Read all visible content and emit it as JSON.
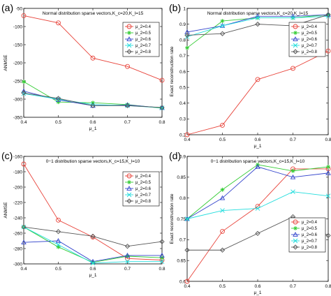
{
  "chart_data": [
    {
      "panel": "(a)",
      "type": "line",
      "title": "Normal distribution sparse vectors,K_c=20,K_l=15",
      "xlabel": "μ_1",
      "ylabel": "ANMSE",
      "xlim": [
        0.4,
        0.8
      ],
      "ylim": [
        -350,
        -50
      ],
      "xticks": [
        0.4,
        0.5,
        0.6,
        0.7,
        0.8
      ],
      "xtick_labels": [
        "0.4",
        "0.5",
        "0.6",
        "0.7",
        "0.8"
      ],
      "yticks": [
        -350,
        -300,
        -250,
        -200,
        -150,
        -100,
        -50
      ],
      "ytick_labels": [
        "-350",
        "-300",
        "-250",
        "-200",
        "-150",
        "-100",
        "-50"
      ],
      "legend": "top-right",
      "x": [
        0.4,
        0.5,
        0.6,
        0.7,
        0.8
      ],
      "series": [
        {
          "name": "μ_2=0.4",
          "color": "#e8433a",
          "marker": "circle",
          "values": [
            -70,
            -90,
            -187,
            -210,
            -248
          ]
        },
        {
          "name": "μ_2=0.5",
          "color": "#33cc33",
          "marker": "star",
          "values": [
            -252,
            -308,
            -310,
            -315,
            -325
          ]
        },
        {
          "name": "μ_2=0.6",
          "color": "#3344cc",
          "marker": "triangle",
          "values": [
            -278,
            -302,
            -318,
            -316,
            -324
          ]
        },
        {
          "name": "μ_2=0.7",
          "color": "#22dddd",
          "marker": "cross",
          "values": [
            -285,
            -300,
            -315,
            -318,
            -324
          ]
        },
        {
          "name": "μ_2=0.8",
          "color": "#555555",
          "marker": "diamond",
          "values": [
            -283,
            -298,
            -318,
            -318,
            -323
          ]
        }
      ]
    },
    {
      "panel": "(b)",
      "type": "line",
      "title": "Normal distribution sparse vectors,K_c=20,K_l=15",
      "xlabel": "μ_1",
      "ylabel": "Exact reconstruction rate",
      "xlim": [
        0.4,
        0.8
      ],
      "ylim": [
        0.2,
        1.0
      ],
      "xticks": [
        0.4,
        0.5,
        0.6,
        0.7,
        0.8
      ],
      "xtick_labels": [
        "0.4",
        "0.5",
        "0.6",
        "0.7",
        "0.8"
      ],
      "yticks": [
        0.2,
        0.3,
        0.4,
        0.5,
        0.6,
        0.7,
        0.8,
        0.9,
        1.0
      ],
      "ytick_labels": [
        "0.2",
        "0.3",
        "0.4",
        "0.5",
        "0.6",
        "0.7",
        "0.8",
        "0.9",
        "1"
      ],
      "legend": "right",
      "x": [
        0.4,
        0.5,
        0.6,
        0.7,
        0.8
      ],
      "series": [
        {
          "name": "μ_2=0.4",
          "color": "#e8433a",
          "marker": "circle",
          "values": [
            0.2,
            0.26,
            0.55,
            0.62,
            0.73
          ]
        },
        {
          "name": "μ_2=0.5",
          "color": "#33cc33",
          "marker": "star",
          "values": [
            0.75,
            0.92,
            0.94,
            0.94,
            0.96
          ]
        },
        {
          "name": "μ_2=0.6",
          "color": "#3344cc",
          "marker": "triangle",
          "values": [
            0.85,
            0.89,
            0.95,
            0.95,
            0.96
          ]
        },
        {
          "name": "μ_2=0.7",
          "color": "#22dddd",
          "marker": "cross",
          "values": [
            0.82,
            0.89,
            0.94,
            0.94,
            0.95
          ]
        },
        {
          "name": "μ_2=0.8",
          "color": "#555555",
          "marker": "diamond",
          "values": [
            0.83,
            0.84,
            0.9,
            0.89,
            0.96
          ]
        }
      ]
    },
    {
      "panel": "(c)",
      "type": "line",
      "title": "0−1 distribution sparse vectors,K_c=15,K_l=10",
      "xlabel": "μ_1",
      "ylabel": "ANMSE",
      "xlim": [
        0.4,
        0.8
      ],
      "ylim": [
        -300,
        -160
      ],
      "xticks": [
        0.4,
        0.5,
        0.6,
        0.7,
        0.8
      ],
      "xtick_labels": [
        "0.4",
        "0.5",
        "0.6",
        "0.7",
        "0.8"
      ],
      "yticks": [
        -300,
        -280,
        -260,
        -240,
        -220,
        -200,
        -180,
        -160
      ],
      "ytick_labels": [
        "-300",
        "-280",
        "-260",
        "-240",
        "-220",
        "-200",
        "-180",
        "-160"
      ],
      "legend": "right",
      "x": [
        0.4,
        0.5,
        0.6,
        0.7,
        0.8
      ],
      "series": [
        {
          "name": "μ_2=0.4",
          "color": "#e8433a",
          "marker": "circle",
          "values": [
            -170,
            -243,
            -265,
            -293,
            -295
          ]
        },
        {
          "name": "μ_2=0.5",
          "color": "#33cc33",
          "marker": "star",
          "values": [
            -252,
            -278,
            -298,
            -290,
            -292
          ]
        },
        {
          "name": "μ_2=0.6",
          "color": "#3344cc",
          "marker": "triangle",
          "values": [
            -272,
            -270,
            -297,
            -289,
            -289
          ]
        },
        {
          "name": "μ_2=0.7",
          "color": "#22dddd",
          "marker": "cross",
          "values": [
            -252,
            -275,
            -299,
            -297,
            -297
          ]
        },
        {
          "name": "μ_2=0.8",
          "color": "#555555",
          "marker": "diamond",
          "values": [
            -252,
            -258,
            -264,
            -277,
            -271
          ]
        }
      ]
    },
    {
      "panel": "(d)",
      "type": "line",
      "title": "0−1 distribution sparse vectors,K_c=15,K_l=10",
      "xlabel": "μ_1",
      "ylabel": "Exact reconstruction rate",
      "xlim": [
        0.4,
        0.8
      ],
      "ylim": [
        0.6,
        0.9
      ],
      "xticks": [
        0.4,
        0.5,
        0.6,
        0.7,
        0.8
      ],
      "xtick_labels": [
        "0.4",
        "0.5",
        "0.6",
        "0.7",
        "0.8"
      ],
      "yticks": [
        0.6,
        0.65,
        0.7,
        0.75,
        0.8,
        0.85,
        0.9
      ],
      "ytick_labels": [
        "0.6",
        "0.65",
        "0.7",
        "0.75",
        "0.8",
        "0.85",
        "0.9"
      ],
      "legend": "bottom-right",
      "x": [
        0.4,
        0.5,
        0.6,
        0.7,
        0.8
      ],
      "series": [
        {
          "name": "μ_2=0.4",
          "color": "#e8433a",
          "marker": "circle",
          "values": [
            0.6,
            0.72,
            0.78,
            0.87,
            0.87
          ]
        },
        {
          "name": "μ_2=0.5",
          "color": "#33cc33",
          "marker": "star",
          "values": [
            0.75,
            0.82,
            0.88,
            0.865,
            0.875
          ]
        },
        {
          "name": "μ_2=0.6",
          "color": "#3344cc",
          "marker": "triangle",
          "values": [
            0.75,
            0.8,
            0.875,
            0.85,
            0.86
          ]
        },
        {
          "name": "μ_2=0.7",
          "color": "#22dddd",
          "marker": "cross",
          "values": [
            0.75,
            0.77,
            0.775,
            0.815,
            0.805
          ]
        },
        {
          "name": "μ_2=0.8",
          "color": "#555555",
          "marker": "diamond",
          "values": [
            0.675,
            0.675,
            0.715,
            0.755,
            0.71
          ]
        }
      ]
    }
  ]
}
